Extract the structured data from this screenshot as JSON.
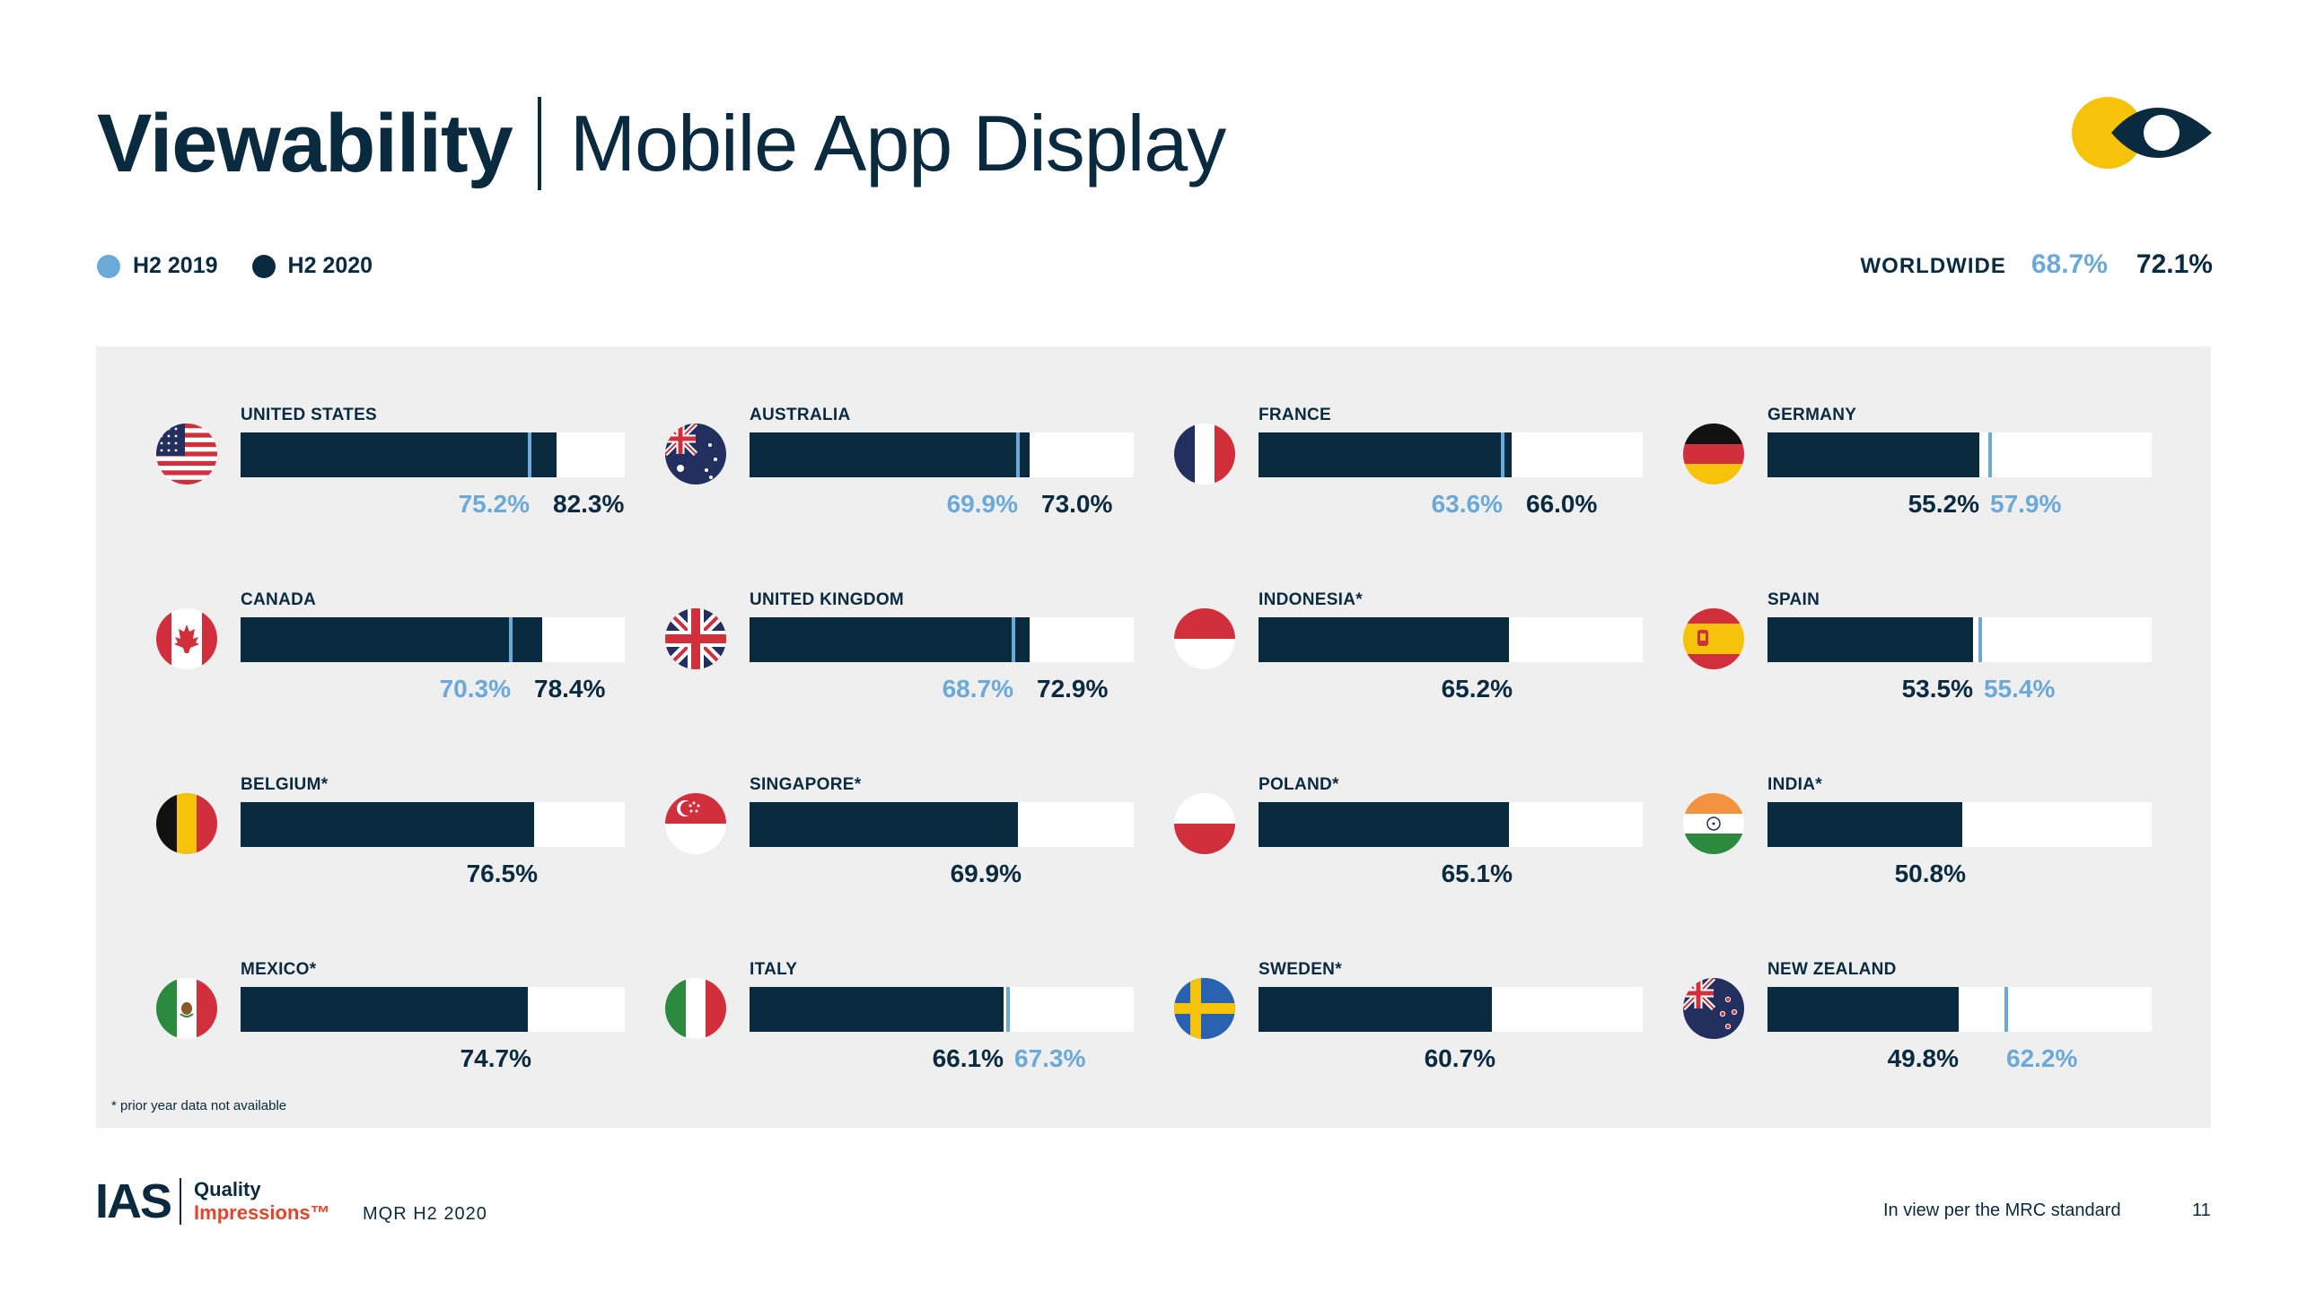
{
  "header": {
    "title": "Viewability",
    "subtitle": "Mobile App Display"
  },
  "legend": {
    "items": [
      {
        "label": "H2 2019",
        "color": "#6aa9d8"
      },
      {
        "label": "H2 2020",
        "color": "#0a2a3f"
      }
    ]
  },
  "worldwide": {
    "label": "WORLDWIDE",
    "h2_2019": "68.7%",
    "h2_2020": "72.1%"
  },
  "colors": {
    "navy": "#0a2a3f",
    "light_blue": "#6aa9d8",
    "panel_bg": "#efefef",
    "accent_yellow": "#f7c20a",
    "accent_red": "#e8412c"
  },
  "chart_data": {
    "type": "bar",
    "orientation": "horizontal",
    "xlim": [
      0,
      100
    ],
    "series": [
      {
        "name": "H2 2019",
        "style": "marker"
      },
      {
        "name": "H2 2020",
        "style": "bar"
      }
    ],
    "countries": [
      {
        "name": "UNITED STATES",
        "flag": "us-flag-icon",
        "h2_2019": 75.2,
        "h2_2020": 82.3,
        "h2_2019_label": "75.2%",
        "h2_2020_label": "82.3%"
      },
      {
        "name": "AUSTRALIA",
        "flag": "australia-flag-icon",
        "h2_2019": 69.9,
        "h2_2020": 73.0,
        "h2_2019_label": "69.9%",
        "h2_2020_label": "73.0%"
      },
      {
        "name": "FRANCE",
        "flag": "france-flag-icon",
        "h2_2019": 63.6,
        "h2_2020": 66.0,
        "h2_2019_label": "63.6%",
        "h2_2020_label": "66.0%"
      },
      {
        "name": "GERMANY",
        "flag": "germany-flag-icon",
        "h2_2019": 57.9,
        "h2_2020": 55.2,
        "h2_2019_label": "57.9%",
        "h2_2020_label": "55.2%"
      },
      {
        "name": "CANADA",
        "flag": "canada-flag-icon",
        "h2_2019": 70.3,
        "h2_2020": 78.4,
        "h2_2019_label": "70.3%",
        "h2_2020_label": "78.4%"
      },
      {
        "name": "UNITED KINGDOM",
        "flag": "uk-flag-icon",
        "h2_2019": 68.7,
        "h2_2020": 72.9,
        "h2_2019_label": "68.7%",
        "h2_2020_label": "72.9%"
      },
      {
        "name": "INDONESIA*",
        "flag": "indonesia-flag-icon",
        "h2_2019": null,
        "h2_2020": 65.2,
        "h2_2019_label": null,
        "h2_2020_label": "65.2%"
      },
      {
        "name": "SPAIN",
        "flag": "spain-flag-icon",
        "h2_2019": 55.4,
        "h2_2020": 53.5,
        "h2_2019_label": "55.4%",
        "h2_2020_label": "53.5%"
      },
      {
        "name": "BELGIUM*",
        "flag": "belgium-flag-icon",
        "h2_2019": null,
        "h2_2020": 76.5,
        "h2_2019_label": null,
        "h2_2020_label": "76.5%"
      },
      {
        "name": "SINGAPORE*",
        "flag": "singapore-flag-icon",
        "h2_2019": null,
        "h2_2020": 69.9,
        "h2_2019_label": null,
        "h2_2020_label": "69.9%"
      },
      {
        "name": "POLAND*",
        "flag": "poland-flag-icon",
        "h2_2019": null,
        "h2_2020": 65.1,
        "h2_2019_label": null,
        "h2_2020_label": "65.1%"
      },
      {
        "name": "INDIA*",
        "flag": "india-flag-icon",
        "h2_2019": null,
        "h2_2020": 50.8,
        "h2_2019_label": null,
        "h2_2020_label": "50.8%"
      },
      {
        "name": "MEXICO*",
        "flag": "mexico-flag-icon",
        "h2_2019": null,
        "h2_2020": 74.7,
        "h2_2019_label": null,
        "h2_2020_label": "74.7%"
      },
      {
        "name": "ITALY",
        "flag": "italy-flag-icon",
        "h2_2019": 67.3,
        "h2_2020": 66.1,
        "h2_2019_label": "67.3%",
        "h2_2020_label": "66.1%"
      },
      {
        "name": "SWEDEN*",
        "flag": "sweden-flag-icon",
        "h2_2019": null,
        "h2_2020": 60.7,
        "h2_2019_label": null,
        "h2_2020_label": "60.7%"
      },
      {
        "name": "NEW ZEALAND",
        "flag": "new-zealand-flag-icon",
        "h2_2019": 62.2,
        "h2_2020": 49.8,
        "h2_2019_label": "62.2%",
        "h2_2020_label": "49.8%"
      }
    ]
  },
  "footnote": "* prior year data not available",
  "footer": {
    "brand": "IAS",
    "quality": "Quality",
    "impressions": "Impressions™",
    "report": "MQR H2 2020",
    "note": "In view per the MRC standard",
    "page": "11"
  }
}
